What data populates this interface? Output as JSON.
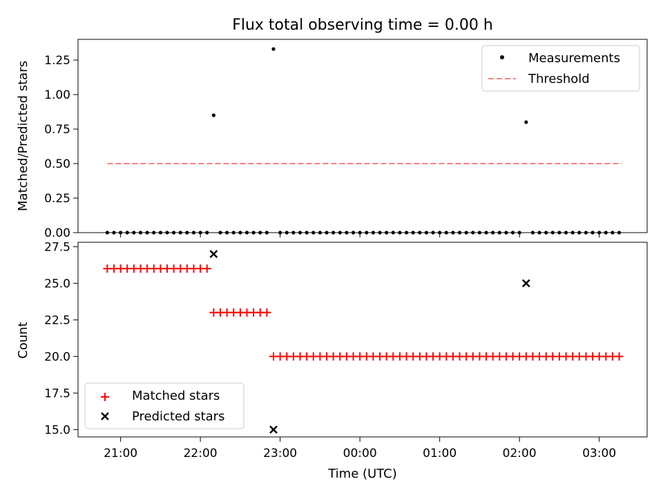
{
  "figure": {
    "title": "Flux total observing time = 0.00 h",
    "xlabel": "Time (UTC)",
    "x_ticks": [
      "21:00",
      "22:00",
      "23:00",
      "00:00",
      "01:00",
      "02:00",
      "03:00"
    ]
  },
  "chart_data": [
    {
      "type": "scatter",
      "name": "ratio-panel",
      "ylabel": "Matched/Predicted stars",
      "ylim": [
        0,
        1.4
      ],
      "y_ticks": [
        "0.00",
        "0.25",
        "0.50",
        "0.75",
        "1.00",
        "1.25"
      ],
      "y_tick_values": [
        0,
        0.25,
        0.5,
        0.75,
        1.0,
        1.25
      ],
      "legend": {
        "placement": "top-right",
        "entries": [
          "Measurements",
          "Threshold"
        ]
      },
      "series": [
        {
          "name": "Measurements",
          "color": "#000000",
          "marker": "dot",
          "nonzero_points": [
            {
              "x": "22:10",
              "y": 0.85
            },
            {
              "x": "22:55",
              "y": 1.33
            },
            {
              "x": "02:05",
              "y": 0.8
            }
          ],
          "other_points_y": 0
        },
        {
          "name": "Threshold",
          "color": "#ff7f7f",
          "style": "dashed",
          "y": 0.5,
          "x_range": [
            "20:50",
            "03:17"
          ]
        }
      ]
    },
    {
      "type": "scatter",
      "name": "count-panel",
      "ylabel": "Count",
      "ylim": [
        14.5,
        27.8
      ],
      "y_ticks": [
        "15.0",
        "17.5",
        "20.0",
        "22.5",
        "25.0",
        "27.5"
      ],
      "y_tick_values": [
        15,
        17.5,
        20,
        22.5,
        25,
        27.5
      ],
      "legend": {
        "placement": "bottom-left",
        "entries": [
          "Matched stars",
          "Predicted stars"
        ]
      },
      "series": [
        {
          "name": "Matched stars",
          "color": "#ff0000",
          "marker": "plus",
          "segments": [
            {
              "x_start": "20:50",
              "x_end": "22:05",
              "y": 26
            },
            {
              "x_start": "22:10",
              "x_end": "22:50",
              "y": 23
            },
            {
              "x_start": "22:55",
              "x_end": "03:17",
              "y": 20
            }
          ]
        },
        {
          "name": "Predicted stars",
          "color": "#000000",
          "marker": "x",
          "points": [
            {
              "x": "22:10",
              "y": 27
            },
            {
              "x": "22:55",
              "y": 15
            },
            {
              "x": "02:05",
              "y": 25
            }
          ]
        }
      ]
    }
  ]
}
